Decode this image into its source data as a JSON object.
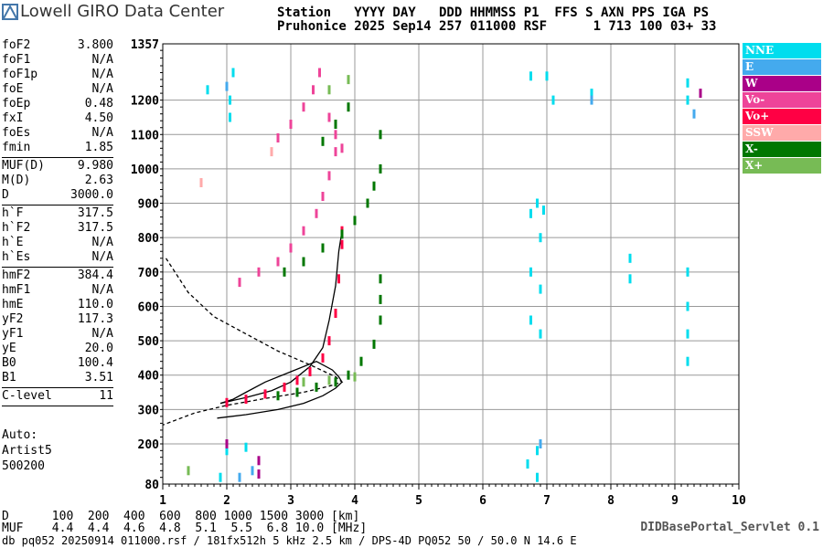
{
  "logo": {
    "text": "Lowell GIRO Data Center"
  },
  "header": {
    "row1": "Station   YYYY DAY   DDD HHMMSS P1  FFS S AXN PPS IGA PS",
    "row2": "Pruhonice 2025 Sep14 257 011000 RSF      1 713 100 03+ 33"
  },
  "params": [
    {
      "name": "foF2",
      "value": "3.800"
    },
    {
      "name": "foF1",
      "value": "N/A"
    },
    {
      "name": "foF1p",
      "value": "N/A"
    },
    {
      "name": "foE",
      "value": "N/A"
    },
    {
      "name": "foEp",
      "value": "0.48"
    },
    {
      "name": "fxI",
      "value": "4.50"
    },
    {
      "name": "foEs",
      "value": "N/A"
    },
    {
      "name": "fmin",
      "value": "1.85"
    },
    {
      "name": "MUF(D)",
      "value": "9.980"
    },
    {
      "name": "M(D)",
      "value": "2.63"
    },
    {
      "name": "D",
      "value": "3000.0"
    },
    {
      "name": "h`F",
      "value": "317.5"
    },
    {
      "name": "h`F2",
      "value": "317.5"
    },
    {
      "name": "h`E",
      "value": "N/A"
    },
    {
      "name": "h`Es",
      "value": "N/A"
    },
    {
      "name": "hmF2",
      "value": "384.4"
    },
    {
      "name": "hmF1",
      "value": "N/A"
    },
    {
      "name": "hmE",
      "value": "110.0"
    },
    {
      "name": "yF2",
      "value": "117.3"
    },
    {
      "name": "yF1",
      "value": "N/A"
    },
    {
      "name": "yE",
      "value": "20.0"
    },
    {
      "name": "B0",
      "value": "100.4"
    },
    {
      "name": "B1",
      "value": "3.51"
    },
    {
      "name": "C-level",
      "value": "11"
    }
  ],
  "auto": {
    "line1": "Auto:",
    "line2": "Artist5",
    "line3": "500200"
  },
  "legend": [
    {
      "label": "NNE",
      "color": "#00ddee"
    },
    {
      "label": "E",
      "color": "#44aaee"
    },
    {
      "label": "W",
      "color": "#aa0088"
    },
    {
      "label": "Vo-",
      "color": "#ee4499"
    },
    {
      "label": "Vo+",
      "color": "#ff0044"
    },
    {
      "label": "SSW",
      "color": "#ffaaaa"
    },
    {
      "label": "X-",
      "color": "#007700"
    },
    {
      "label": "X+",
      "color": "#77bb55"
    }
  ],
  "muf_table": {
    "row1": "D      100  200  400  600  800 1000 1500 3000 [km]",
    "row2": "MUF    4.4  4.4  4.6  4.8  5.1  5.5  6.8 10.0 [MHz]"
  },
  "footer": {
    "info": "db pq052 20250914 011000.rsf / 181fx512h 5 kHz 2.5 km / DPS-4D PQ052 50 / 50.0 N 14.6 E",
    "servlet": "DIDBasePortal_Servlet 0.1"
  },
  "chart_data": {
    "type": "scatter",
    "x_ticks": [
      "1",
      "2",
      "3",
      "4",
      "5",
      "6",
      "7",
      "8",
      "9",
      "10"
    ],
    "y_ticks": [
      "80",
      "200",
      "300",
      "400",
      "500",
      "600",
      "700",
      "800",
      "900",
      "1000",
      "1100",
      "1200",
      "1357"
    ],
    "xlim": [
      1,
      10
    ],
    "ylim": [
      80,
      1357
    ],
    "series": [
      {
        "name": "Vo+",
        "color": "#ff0044",
        "points": [
          [
            2.0,
            320
          ],
          [
            2.3,
            330
          ],
          [
            2.6,
            345
          ],
          [
            2.9,
            365
          ],
          [
            3.1,
            385
          ],
          [
            3.3,
            410
          ],
          [
            3.5,
            450
          ],
          [
            3.6,
            500
          ],
          [
            3.7,
            580
          ],
          [
            3.75,
            680
          ],
          [
            3.8,
            780
          ],
          [
            3.8,
            820
          ]
        ]
      },
      {
        "name": "Vo-",
        "color": "#ee4499",
        "points": [
          [
            2.2,
            670
          ],
          [
            2.5,
            700
          ],
          [
            2.8,
            730
          ],
          [
            3.0,
            770
          ],
          [
            3.2,
            820
          ],
          [
            3.4,
            870
          ],
          [
            3.5,
            920
          ],
          [
            3.6,
            980
          ],
          [
            3.7,
            1050
          ],
          [
            2.8,
            1090
          ],
          [
            3.0,
            1130
          ],
          [
            3.2,
            1180
          ],
          [
            3.35,
            1230
          ],
          [
            3.45,
            1280
          ],
          [
            3.6,
            1150
          ],
          [
            3.7,
            1100
          ],
          [
            3.8,
            1060
          ]
        ]
      },
      {
        "name": "X-",
        "color": "#007700",
        "points": [
          [
            2.8,
            340
          ],
          [
            3.1,
            350
          ],
          [
            3.4,
            365
          ],
          [
            3.7,
            380
          ],
          [
            3.9,
            400
          ],
          [
            4.1,
            440
          ],
          [
            4.3,
            490
          ],
          [
            4.4,
            560
          ],
          [
            4.4,
            620
          ],
          [
            4.4,
            680
          ],
          [
            2.9,
            700
          ],
          [
            3.2,
            730
          ],
          [
            3.5,
            770
          ],
          [
            3.8,
            810
          ],
          [
            4.0,
            850
          ],
          [
            4.2,
            900
          ],
          [
            4.3,
            950
          ],
          [
            3.5,
            1080
          ],
          [
            3.7,
            1130
          ],
          [
            3.9,
            1180
          ],
          [
            4.4,
            1000
          ],
          [
            4.4,
            1100
          ]
        ]
      },
      {
        "name": "X+",
        "color": "#77bb55",
        "points": [
          [
            1.4,
            120
          ],
          [
            3.2,
            380
          ],
          [
            3.6,
            385
          ],
          [
            4.0,
            395
          ],
          [
            3.9,
            1260
          ],
          [
            3.6,
            1230
          ]
        ]
      },
      {
        "name": "NNE",
        "color": "#00ddee",
        "points": [
          [
            1.7,
            1230
          ],
          [
            2.05,
            1200
          ],
          [
            2.05,
            1150
          ],
          [
            2.1,
            1280
          ],
          [
            6.75,
            870
          ],
          [
            6.75,
            700
          ],
          [
            6.75,
            560
          ],
          [
            6.85,
            900
          ],
          [
            6.9,
            800
          ],
          [
            6.9,
            650
          ],
          [
            6.9,
            520
          ],
          [
            6.95,
            880
          ],
          [
            6.75,
            1270
          ],
          [
            7.0,
            1270
          ],
          [
            7.1,
            1200
          ],
          [
            7.7,
            1220
          ],
          [
            8.3,
            740
          ],
          [
            8.3,
            680
          ],
          [
            9.2,
            1250
          ],
          [
            9.2,
            1200
          ],
          [
            9.2,
            700
          ],
          [
            9.2,
            600
          ],
          [
            9.2,
            520
          ],
          [
            9.2,
            440
          ],
          [
            6.85,
            180
          ],
          [
            6.85,
            100
          ],
          [
            6.7,
            140
          ],
          [
            1.9,
            100
          ],
          [
            2.0,
            180
          ],
          [
            2.3,
            190
          ]
        ]
      },
      {
        "name": "E",
        "color": "#44aaee",
        "points": [
          [
            2.0,
            1240
          ],
          [
            7.7,
            1200
          ],
          [
            9.3,
            1160
          ],
          [
            2.4,
            120
          ],
          [
            2.2,
            100
          ],
          [
            6.9,
            200
          ]
        ]
      },
      {
        "name": "W",
        "color": "#aa0088",
        "points": [
          [
            2.5,
            150
          ],
          [
            2.5,
            110
          ],
          [
            9.4,
            1220
          ],
          [
            2.0,
            200
          ]
        ]
      },
      {
        "name": "SSW",
        "color": "#ffaaaa",
        "points": [
          [
            1.6,
            960
          ],
          [
            2.7,
            1050
          ]
        ]
      }
    ],
    "curves": [
      {
        "name": "profile-solid",
        "style": "solid",
        "points": [
          [
            1.85,
            275
          ],
          [
            2.3,
            285
          ],
          [
            2.8,
            300
          ],
          [
            3.2,
            318
          ],
          [
            3.5,
            340
          ],
          [
            3.7,
            362
          ],
          [
            3.8,
            380
          ],
          [
            3.75,
            395
          ],
          [
            3.65,
            415
          ],
          [
            3.4,
            440
          ],
          [
            3.0,
            410
          ],
          [
            2.6,
            380
          ],
          [
            2.3,
            350
          ],
          [
            2.1,
            330
          ],
          [
            1.9,
            318
          ]
        ]
      },
      {
        "name": "profile-solid-upper",
        "style": "solid",
        "points": [
          [
            1.9,
            318
          ],
          [
            2.3,
            335
          ],
          [
            2.7,
            355
          ],
          [
            3.0,
            380
          ],
          [
            3.3,
            425
          ],
          [
            3.5,
            480
          ],
          [
            3.6,
            560
          ],
          [
            3.7,
            660
          ],
          [
            3.75,
            760
          ],
          [
            3.8,
            820
          ]
        ]
      },
      {
        "name": "profile-dashed",
        "style": "dashed",
        "points": [
          [
            1.05,
            740
          ],
          [
            1.4,
            640
          ],
          [
            1.8,
            570
          ],
          [
            2.3,
            520
          ],
          [
            2.8,
            470
          ],
          [
            3.3,
            430
          ],
          [
            3.7,
            395
          ],
          [
            3.8,
            380
          ],
          [
            3.6,
            368
          ],
          [
            3.2,
            350
          ],
          [
            2.6,
            332
          ],
          [
            2.0,
            312
          ],
          [
            1.5,
            290
          ],
          [
            1.0,
            255
          ]
        ]
      }
    ]
  }
}
